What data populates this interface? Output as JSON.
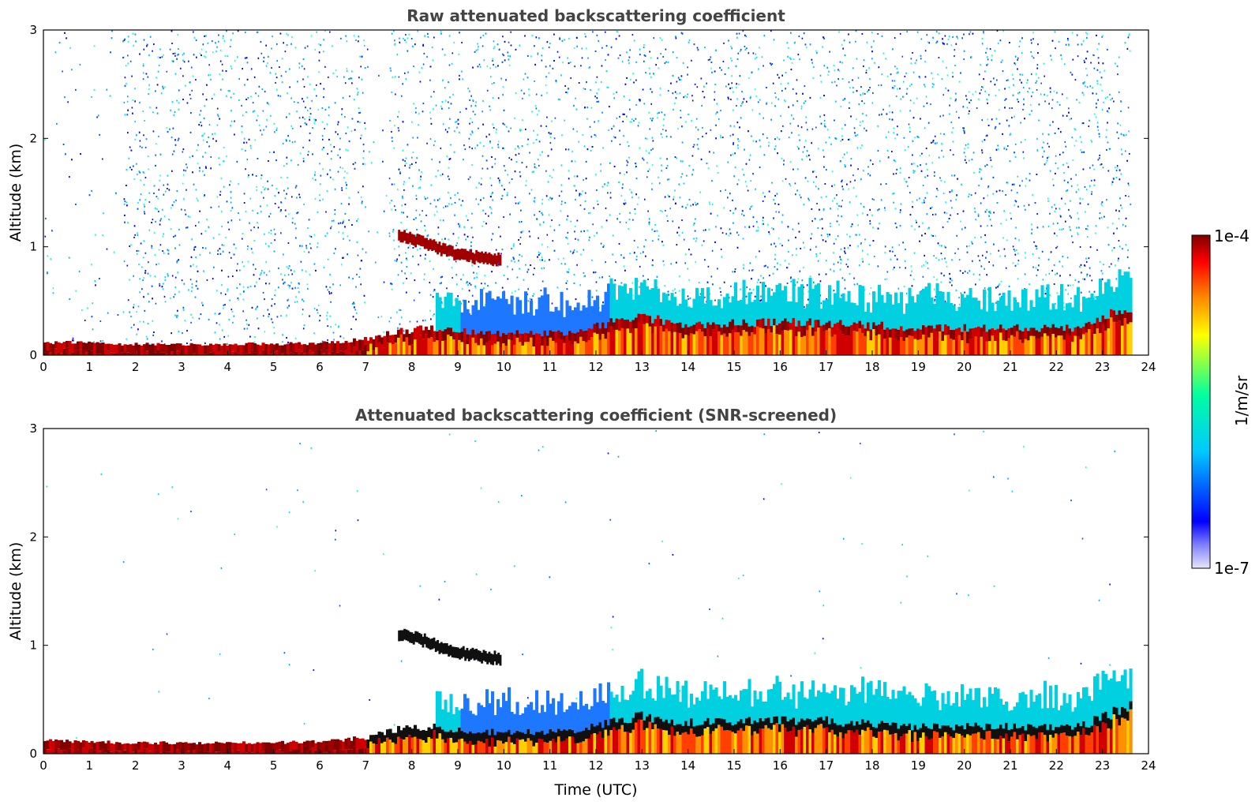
{
  "chart_data": [
    {
      "type": "heatmap",
      "title": "Raw attenuated backscattering coefficient",
      "xlabel": "",
      "ylabel": "Altitude (km)",
      "xlim": [
        0,
        24
      ],
      "ylim": [
        0,
        3
      ],
      "xticks": [
        "0",
        "1",
        "2",
        "3",
        "4",
        "5",
        "6",
        "7",
        "8",
        "9",
        "10",
        "11",
        "12",
        "13",
        "14",
        "15",
        "16",
        "17",
        "18",
        "19",
        "20",
        "21",
        "22",
        "23",
        "24"
      ],
      "yticks": [
        "0",
        "1",
        "2",
        "3"
      ],
      "noise": "heavy",
      "series": [
        {
          "layer": "boundary_layer_top",
          "time_utc": [
            0,
            2,
            4,
            6,
            7,
            7.6,
            8.5,
            9.5,
            10.5,
            11.5,
            12.3,
            13,
            13.8,
            15,
            17,
            19,
            21,
            22.5,
            23.6
          ],
          "altitude_km": [
            0.12,
            0.1,
            0.1,
            0.11,
            0.15,
            0.22,
            0.25,
            0.2,
            0.2,
            0.2,
            0.3,
            0.35,
            0.28,
            0.3,
            0.3,
            0.25,
            0.25,
            0.25,
            0.45
          ]
        },
        {
          "layer": "cloud_layer",
          "time_utc": [
            7.7,
            8.2,
            8.8,
            9.4,
            9.9
          ],
          "altitude_km": [
            1.1,
            1.05,
            0.95,
            0.9,
            0.88
          ]
        }
      ]
    },
    {
      "type": "heatmap",
      "title": "Attenuated backscattering coefficient (SNR-screened)",
      "xlabel": "Time (UTC)",
      "ylabel": "Altitude (km)",
      "xlim": [
        0,
        24
      ],
      "ylim": [
        0,
        3
      ],
      "xticks": [
        "0",
        "1",
        "2",
        "3",
        "4",
        "5",
        "6",
        "7",
        "8",
        "9",
        "10",
        "11",
        "12",
        "13",
        "14",
        "15",
        "16",
        "17",
        "18",
        "19",
        "20",
        "21",
        "22",
        "23",
        "24"
      ],
      "yticks": [
        "0",
        "1",
        "2",
        "3"
      ],
      "noise": "light",
      "series": [
        {
          "layer": "boundary_layer_top",
          "time_utc": [
            0,
            2,
            4,
            6,
            7,
            7.6,
            8.5,
            9.5,
            10.5,
            11.5,
            12.3,
            13,
            13.8,
            15,
            17,
            19,
            21,
            22.5,
            23.6
          ],
          "altitude_km": [
            0.12,
            0.1,
            0.1,
            0.11,
            0.15,
            0.22,
            0.25,
            0.2,
            0.2,
            0.2,
            0.3,
            0.35,
            0.28,
            0.3,
            0.3,
            0.25,
            0.25,
            0.25,
            0.45
          ]
        },
        {
          "layer": "cloud_layer",
          "time_utc": [
            7.7,
            8.2,
            8.8,
            9.4,
            9.9
          ],
          "altitude_km": [
            1.1,
            1.05,
            0.95,
            0.9,
            0.88
          ]
        }
      ]
    }
  ],
  "colorbar": {
    "label": "1/m/sr",
    "max_label": "1e-4",
    "min_label": "1e-7",
    "scale": "log",
    "range": [
      1e-07,
      0.0001
    ],
    "colors": [
      "#e6e6fa",
      "#0000ff",
      "#00c8ff",
      "#00ffa0",
      "#ffff00",
      "#ff8000",
      "#ff0000",
      "#800000"
    ]
  }
}
